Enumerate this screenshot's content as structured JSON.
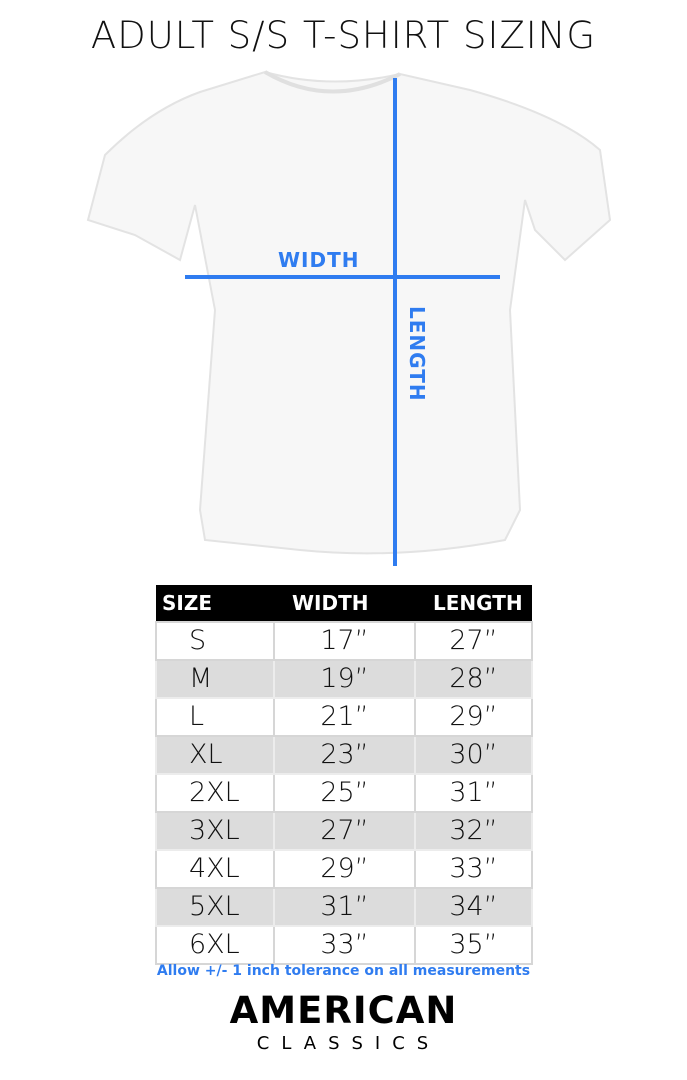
{
  "title": "ADULT S/S T-SHIRT SIZING",
  "diagram": {
    "width_label": "WIDTH",
    "length_label": "LENGTH",
    "line_color": "#2f7cf0"
  },
  "table": {
    "headers": [
      "SIZE",
      "WIDTH",
      "LENGTH"
    ],
    "rows": [
      [
        "S",
        "17”",
        "27”"
      ],
      [
        "M",
        "19”",
        "28”"
      ],
      [
        "L",
        "21”",
        "29”"
      ],
      [
        "XL",
        "23”",
        "30”"
      ],
      [
        "2XL",
        "25”",
        "31”"
      ],
      [
        "3XL",
        "27”",
        "32”"
      ],
      [
        "4XL",
        "29”",
        "33”"
      ],
      [
        "5XL",
        "31”",
        "34”"
      ],
      [
        "6XL",
        "33”",
        "35”"
      ]
    ]
  },
  "note": "Allow +/- 1 inch tolerance on all measurements",
  "logo": {
    "line1": "AMERICAN",
    "line2": "CLASSICS"
  }
}
